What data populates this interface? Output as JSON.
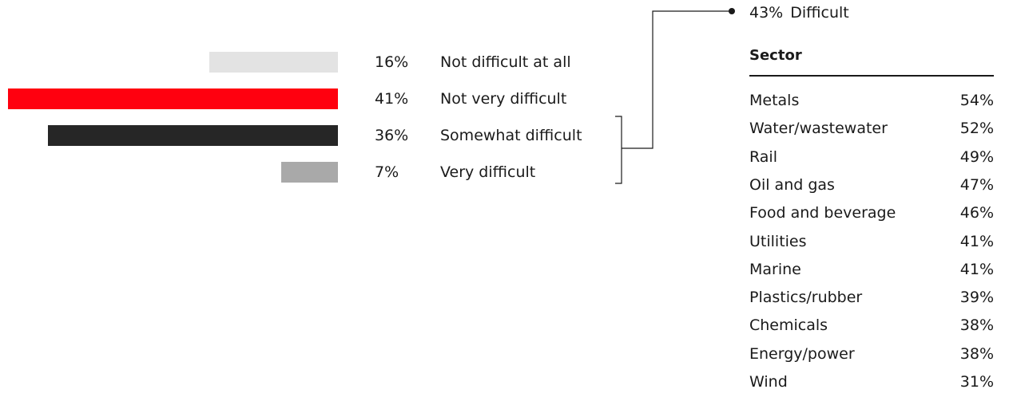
{
  "chart_data": [
    {
      "type": "bar",
      "orientation": "horizontal",
      "categories": [
        "Not difficult at all",
        "Not very difficult",
        "Somewhat difficult",
        "Very difficult"
      ],
      "values": [
        16,
        41,
        36,
        7
      ],
      "value_labels": [
        "16%",
        "41%",
        "36%",
        "7%"
      ],
      "colors": [
        "#e3e3e3",
        "#ff000f",
        "#262626",
        "#a9a9a9"
      ],
      "xlim": [
        0,
        41
      ],
      "grid": false,
      "legend": "none",
      "bracket": {
        "groups": [
          "Somewhat difficult",
          "Very difficult"
        ],
        "value": 43,
        "label_pct": "43%",
        "label_text": "Difficult"
      }
    },
    {
      "type": "table",
      "title": "Sector",
      "rows": [
        {
          "name": "Metals",
          "value": 54,
          "label": "54%"
        },
        {
          "name": "Water/wastewater",
          "value": 52,
          "label": "52%"
        },
        {
          "name": "Rail",
          "value": 49,
          "label": "49%"
        },
        {
          "name": "Oil and gas",
          "value": 47,
          "label": "47%"
        },
        {
          "name": "Food and beverage",
          "value": 46,
          "label": "46%"
        },
        {
          "name": "Utilities",
          "value": 41,
          "label": "41%"
        },
        {
          "name": "Marine",
          "value": 41,
          "label": "41%"
        },
        {
          "name": "Plastics/rubber",
          "value": 39,
          "label": "39%"
        },
        {
          "name": "Chemicals",
          "value": 38,
          "label": "38%"
        },
        {
          "name": "Energy/power",
          "value": 38,
          "label": "38%"
        },
        {
          "name": "Wind",
          "value": 31,
          "label": "31%"
        }
      ]
    }
  ]
}
